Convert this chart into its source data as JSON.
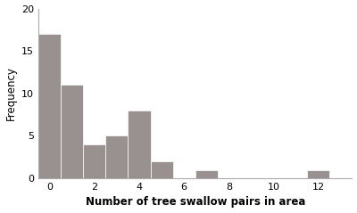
{
  "bar_positions": [
    0,
    1,
    2,
    3,
    4,
    5,
    7,
    12
  ],
  "bar_heights": [
    17,
    11,
    4,
    5,
    8,
    2,
    1,
    1
  ],
  "bar_color": "#999090",
  "bar_width": 1.0,
  "xlabel": "Number of tree swallow pairs in area",
  "ylabel": "Frequency",
  "xlim": [
    -0.5,
    13.5
  ],
  "ylim": [
    0,
    20
  ],
  "xticks": [
    0,
    2,
    4,
    6,
    8,
    10,
    12
  ],
  "yticks": [
    0,
    5,
    10,
    15,
    20
  ],
  "background_color": "#ffffff",
  "xlabel_fontsize": 8.5,
  "ylabel_fontsize": 8.5,
  "tick_fontsize": 8,
  "spine_color": "#aaaaaa"
}
